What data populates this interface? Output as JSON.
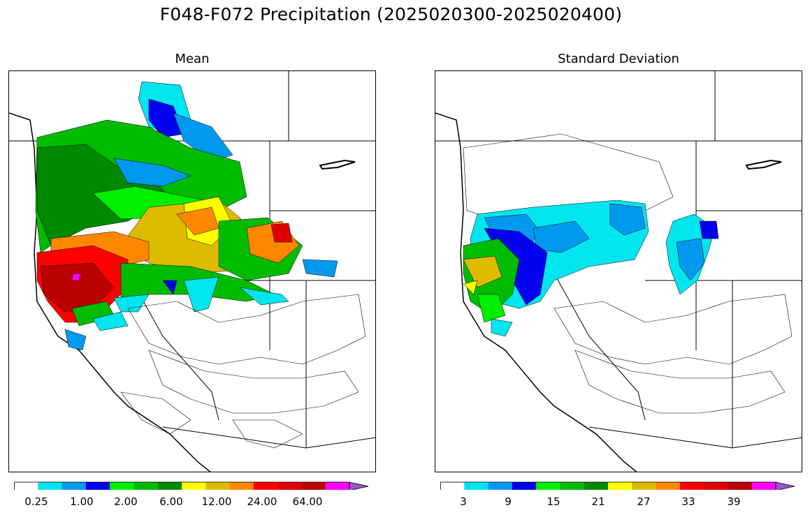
{
  "figure": {
    "title": "F048-F072 Precipitation (2025020300-2025020400)"
  },
  "panels": [
    {
      "title": "Mean",
      "colorbar": {
        "colors": [
          "#ffffff",
          "#00e5ee",
          "#0099ee",
          "#0000ee",
          "#00ee00",
          "#00bb00",
          "#008800",
          "#ffff00",
          "#ddbb00",
          "#ff8800",
          "#ff0000",
          "#dd0000",
          "#bb0000",
          "#ff00ff",
          "#9955cc"
        ],
        "tick_labels": [
          "0.25",
          "1.00",
          "2.00",
          "6.00",
          "12.00",
          "24.00",
          "64.00"
        ],
        "extend": "max"
      }
    },
    {
      "title": "Standard Deviation",
      "colorbar": {
        "colors": [
          "#ffffff",
          "#00e5ee",
          "#0099ee",
          "#0000ee",
          "#00ee00",
          "#00bb00",
          "#008800",
          "#ffff00",
          "#ddbb00",
          "#ff8800",
          "#ff0000",
          "#dd0000",
          "#bb0000",
          "#ff00ff",
          "#9955cc"
        ],
        "tick_labels": [
          "3",
          "9",
          "15",
          "21",
          "27",
          "33",
          "39"
        ],
        "extend": "max"
      }
    }
  ]
}
